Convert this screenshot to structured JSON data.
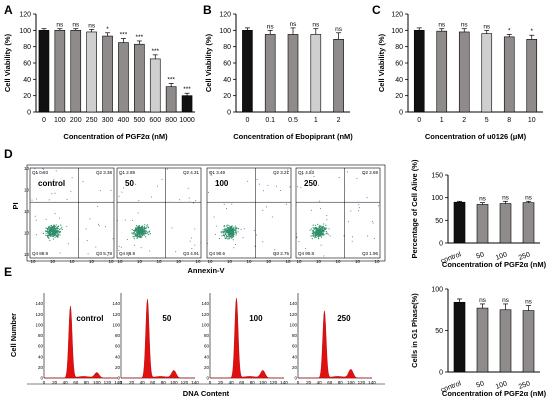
{
  "panels": {
    "A": "A",
    "B": "B",
    "C": "C",
    "D": "D",
    "E": "E"
  },
  "colors": {
    "bar_dark": "#111111",
    "bar_mid": "#8f8b8b",
    "bar_light": "#cfcfcf",
    "flow_dot": "#2f8f6a",
    "histogram": "#e01010"
  },
  "chart_data": [
    {
      "panel": "A",
      "type": "bar",
      "categories": [
        "0",
        "100",
        "200",
        "250",
        "300",
        "400",
        "500",
        "600",
        "800",
        "1000"
      ],
      "values": [
        100,
        100,
        100,
        98,
        93,
        85,
        83,
        65,
        31,
        20
      ],
      "errors": [
        2,
        2,
        2,
        3,
        4,
        5,
        4,
        5,
        4,
        3
      ],
      "significance": [
        "",
        "ns",
        "ns",
        "ns",
        "*",
        "***",
        "***",
        "***",
        "***",
        "***"
      ],
      "bar_shades": [
        "dark",
        "mid",
        "mid",
        "light",
        "mid",
        "mid",
        "mid",
        "light",
        "mid",
        "dark"
      ],
      "xlabel": "Concentration of PGF2α (nM)",
      "ylabel": "Cell Viability (%)",
      "ylim": [
        0,
        120
      ],
      "yticks": [
        0,
        20,
        40,
        60,
        80,
        100,
        120
      ]
    },
    {
      "panel": "B",
      "type": "bar",
      "categories": [
        "0",
        "0.1",
        "0.5",
        "1",
        "2"
      ],
      "values": [
        100,
        95,
        95,
        95,
        89
      ],
      "errors": [
        3,
        5,
        8,
        7,
        8
      ],
      "significance": [
        "",
        "ns",
        "ns",
        "ns",
        "ns"
      ],
      "bar_shades": [
        "dark",
        "mid",
        "mid",
        "light",
        "mid"
      ],
      "xlabel": "Concentration of Ebopiprant (nM)",
      "ylabel": "Cell Viability (%)",
      "ylim": [
        0,
        120
      ],
      "yticks": [
        0,
        20,
        40,
        60,
        80,
        100,
        120
      ]
    },
    {
      "panel": "C",
      "type": "bar",
      "categories": [
        "0",
        "1",
        "2",
        "5",
        "8",
        "10"
      ],
      "values": [
        100,
        99,
        98,
        96,
        92,
        89
      ],
      "errors": [
        3,
        3,
        4,
        4,
        3,
        5
      ],
      "significance": [
        "",
        "ns",
        "ns",
        "ns",
        "*",
        "*"
      ],
      "bar_shades": [
        "dark",
        "mid",
        "mid",
        "light",
        "mid",
        "mid"
      ],
      "xlabel": "Concentration of u0126 (μM)",
      "ylabel": "Cell Viability (%)",
      "ylim": [
        0,
        120
      ],
      "yticks": [
        0,
        20,
        40,
        60,
        80,
        100,
        120
      ]
    },
    {
      "panel": "D-bar",
      "type": "bar",
      "categories": [
        "control",
        "50",
        "100",
        "250"
      ],
      "values": [
        90,
        85,
        87,
        89
      ],
      "errors": [
        2,
        4,
        5,
        3
      ],
      "significance": [
        "",
        "ns",
        "ns",
        "ns"
      ],
      "bar_shades": [
        "dark",
        "mid",
        "mid",
        "mid"
      ],
      "xlabel": "Concentration of PGF2α (nM)",
      "ylabel": "Percentage of Cell Alive (%)",
      "ylim": [
        0,
        150
      ],
      "yticks": [
        0,
        50,
        100,
        150
      ]
    },
    {
      "panel": "E-bar",
      "type": "bar",
      "categories": [
        "control",
        "50",
        "100",
        "250"
      ],
      "values": [
        84,
        77,
        75,
        74
      ],
      "errors": [
        4,
        5,
        7,
        6
      ],
      "significance": [
        "",
        "ns",
        "ns",
        "ns"
      ],
      "bar_shades": [
        "dark",
        "mid",
        "mid",
        "mid"
      ],
      "xlabel": "Concentration of PGF2α (nM)",
      "ylabel": "Cells in G1 Phase(%)",
      "ylim": [
        0,
        100
      ],
      "yticks": [
        0,
        50,
        100
      ]
    }
  ],
  "flow": {
    "xlabel": "Annexin-V",
    "ylabel": "PI",
    "xticks": [
      "10",
      "10",
      "10",
      "10",
      "10"
    ],
    "yticks": [
      "10",
      "10",
      "10",
      "10",
      "10"
    ],
    "plots": [
      {
        "label": "control",
        "q1": "Q1 0.93",
        "q2": "Q2 3.38",
        "q3": "Q3 5.78",
        "q4": "Q4 89.9"
      },
      {
        "label": "50",
        "q1": "Q1 2.89",
        "q2": "Q2 4.31",
        "q3": "Q3 4.91",
        "q4": "Q4 88.9"
      },
      {
        "label": "100",
        "q1": "Q1 3.49",
        "q2": "Q2 3.21",
        "q3": "Q3 2.75",
        "q4": "Q4 90.6"
      },
      {
        "label": "250",
        "q1": "Q1 4.53",
        "q2": "Q2 2.69",
        "q3": "Q3 1.96",
        "q4": "Q4 90.8"
      }
    ]
  },
  "cycle": {
    "xlabel": "DNA Content",
    "ylabel": "Cell Number",
    "xticks": [
      "0",
      "20",
      "40",
      "60",
      "80",
      "100",
      "120",
      "140"
    ],
    "yticks": [
      "0",
      "20",
      "40",
      "60",
      "80",
      "100",
      "120",
      "140"
    ],
    "plots": [
      {
        "label": "control",
        "g1_height": 135,
        "g2_height": 10
      },
      {
        "label": "50",
        "g1_height": 148,
        "g2_height": 14
      },
      {
        "label": "100",
        "g1_height": 150,
        "g2_height": 14
      },
      {
        "label": "250",
        "g1_height": 126,
        "g2_height": 16
      }
    ]
  }
}
